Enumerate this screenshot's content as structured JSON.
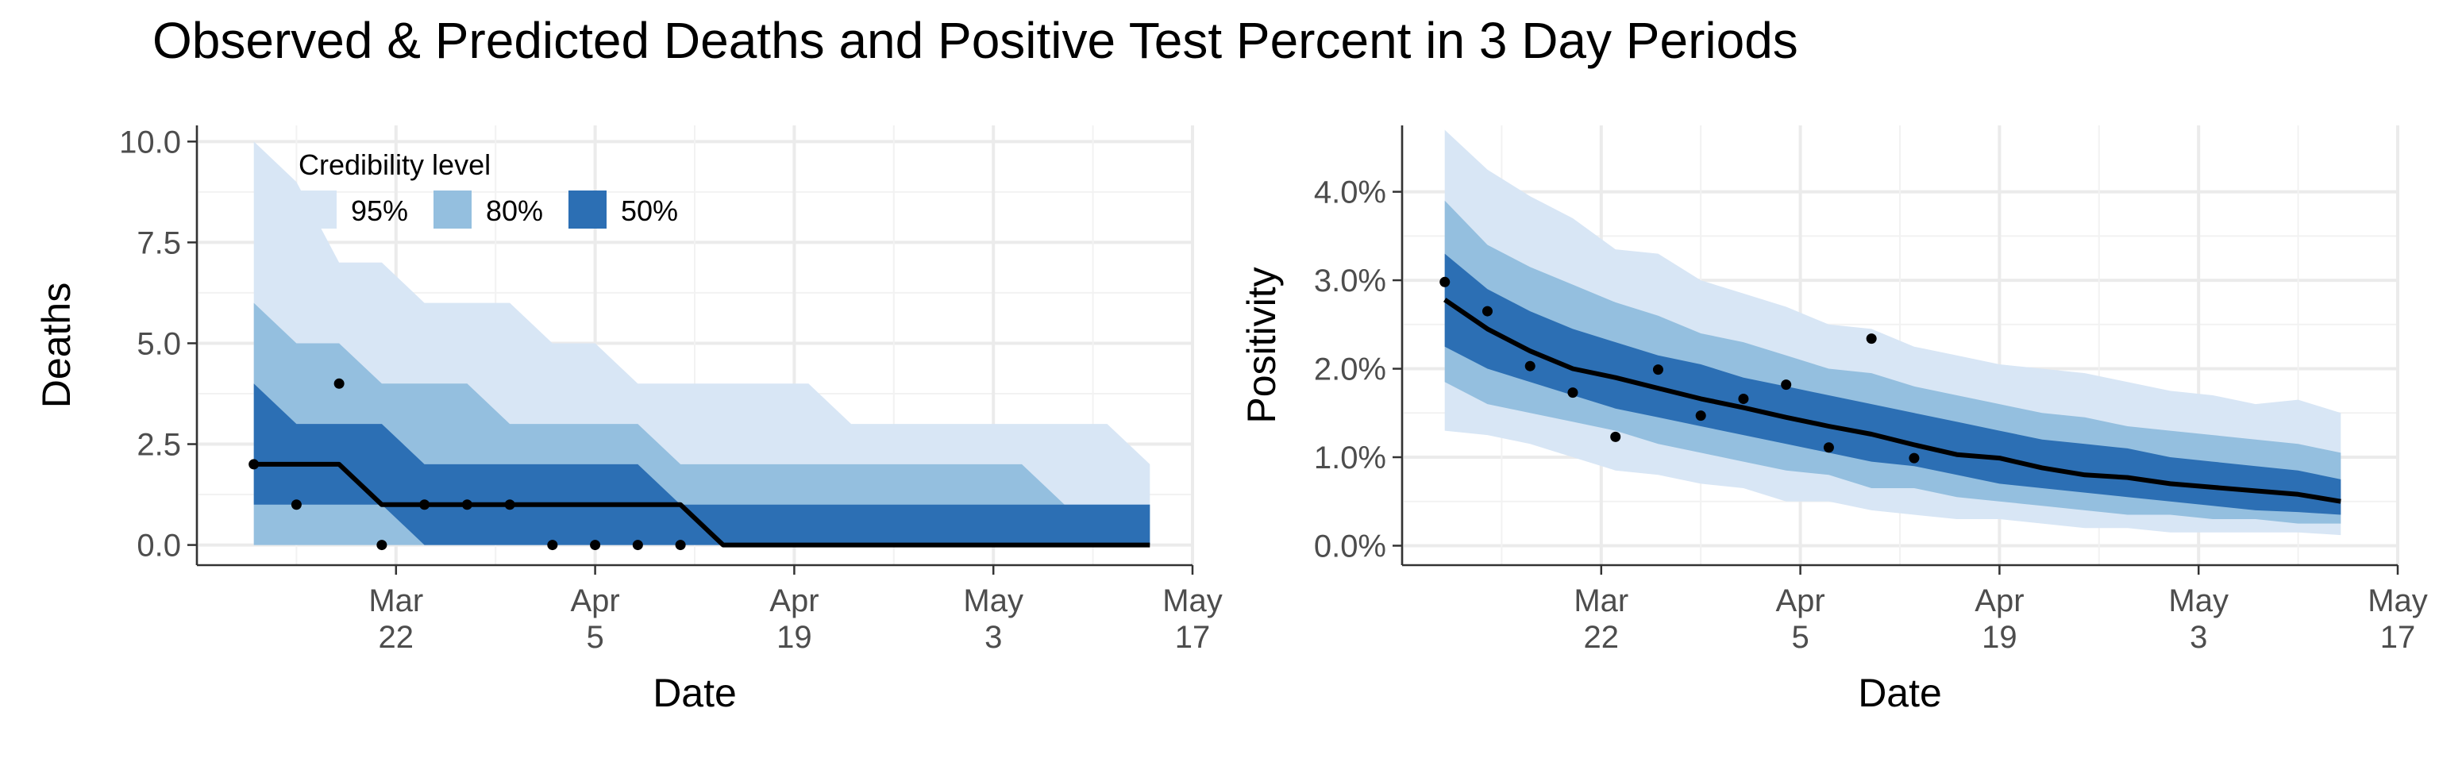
{
  "title": "Observed & Predicted Deaths and Positive Test Percent in 3 Day Periods",
  "chart_data": [
    {
      "type": "area",
      "ylabel": "Deaths",
      "xlabel": "Date",
      "xlim": [
        "2020-03-08",
        "2020-05-17"
      ],
      "ylim": [
        -0.5,
        10.4
      ],
      "x_ticks": [
        {
          "date": "2020-03-22",
          "line1": "Mar",
          "line2": "22"
        },
        {
          "date": "2020-04-05",
          "line1": "Apr",
          "line2": "5"
        },
        {
          "date": "2020-04-19",
          "line1": "Apr",
          "line2": "19"
        },
        {
          "date": "2020-05-03",
          "line1": "May",
          "line2": "3"
        },
        {
          "date": "2020-05-17",
          "line1": "May",
          "line2": "17"
        }
      ],
      "y_ticks": [
        {
          "value": 0,
          "label": "0.0"
        },
        {
          "value": 2.5,
          "label": "2.5"
        },
        {
          "value": 5,
          "label": "5.0"
        },
        {
          "value": 7.5,
          "label": "7.5"
        },
        {
          "value": 10,
          "label": "10.0"
        }
      ],
      "legend": {
        "title": "Credibility level",
        "position": "top-left",
        "items": [
          {
            "label": "95%",
            "color": "#d8e6f5"
          },
          {
            "label": "80%",
            "color": "#94bfdf"
          },
          {
            "label": "50%",
            "color": "#2c6fb4"
          }
        ]
      },
      "x": [
        "2020-03-12",
        "2020-03-15",
        "2020-03-18",
        "2020-03-21",
        "2020-03-24",
        "2020-03-27",
        "2020-03-30",
        "2020-04-02",
        "2020-04-05",
        "2020-04-08",
        "2020-04-11",
        "2020-04-14",
        "2020-04-17",
        "2020-04-20",
        "2020-04-23",
        "2020-04-26",
        "2020-04-29",
        "2020-05-02",
        "2020-05-05",
        "2020-05-08",
        "2020-05-11",
        "2020-05-14"
      ],
      "bands": {
        "95": {
          "lower": [
            0,
            0,
            0,
            0,
            0,
            0,
            0,
            0,
            0,
            0,
            0,
            0,
            0,
            0,
            0,
            0,
            0,
            0,
            0,
            0,
            0,
            0
          ],
          "upper": [
            10,
            9,
            7,
            7,
            6,
            6,
            6,
            5,
            5,
            4,
            4,
            4,
            4,
            4,
            3,
            3,
            3,
            3,
            3,
            3,
            3,
            2
          ]
        },
        "80": {
          "lower": [
            0,
            0,
            0,
            0,
            0,
            0,
            0,
            0,
            0,
            0,
            0,
            0,
            0,
            0,
            0,
            0,
            0,
            0,
            0,
            0,
            0,
            0
          ],
          "upper": [
            6,
            5,
            5,
            4,
            4,
            4,
            3,
            3,
            3,
            3,
            2,
            2,
            2,
            2,
            2,
            2,
            2,
            2,
            2,
            1,
            1,
            1
          ]
        },
        "50": {
          "lower": [
            1,
            1,
            1,
            1,
            0,
            0,
            0,
            0,
            0,
            0,
            0,
            0,
            0,
            0,
            0,
            0,
            0,
            0,
            0,
            0,
            0,
            0
          ],
          "upper": [
            4,
            3,
            3,
            3,
            2,
            2,
            2,
            2,
            2,
            2,
            1,
            1,
            1,
            1,
            1,
            1,
            1,
            1,
            1,
            1,
            1,
            1
          ]
        }
      },
      "predicted_median": [
        2,
        2,
        2,
        1,
        1,
        1,
        1,
        1,
        1,
        1,
        1,
        0,
        0,
        0,
        0,
        0,
        0,
        0,
        0,
        0,
        0,
        0
      ],
      "observed": [
        {
          "x": "2020-03-12",
          "y": 2
        },
        {
          "x": "2020-03-15",
          "y": 1
        },
        {
          "x": "2020-03-18",
          "y": 4
        },
        {
          "x": "2020-03-21",
          "y": 0
        },
        {
          "x": "2020-03-24",
          "y": 1
        },
        {
          "x": "2020-03-27",
          "y": 1
        },
        {
          "x": "2020-03-30",
          "y": 1
        },
        {
          "x": "2020-04-02",
          "y": 0
        },
        {
          "x": "2020-04-05",
          "y": 0
        },
        {
          "x": "2020-04-08",
          "y": 0
        },
        {
          "x": "2020-04-11",
          "y": 0
        }
      ],
      "grid": true
    },
    {
      "type": "area",
      "ylabel": "Positivity",
      "xlabel": "Date",
      "xlim": [
        "2020-03-08",
        "2020-05-17"
      ],
      "ylim": [
        -0.22,
        4.75
      ],
      "x_ticks": [
        {
          "date": "2020-03-22",
          "line1": "Mar",
          "line2": "22"
        },
        {
          "date": "2020-04-05",
          "line1": "Apr",
          "line2": "5"
        },
        {
          "date": "2020-04-19",
          "line1": "Apr",
          "line2": "19"
        },
        {
          "date": "2020-05-03",
          "line1": "May",
          "line2": "3"
        },
        {
          "date": "2020-05-17",
          "line1": "May",
          "line2": "17"
        }
      ],
      "y_ticks": [
        {
          "value": 0,
          "label": "0.0%"
        },
        {
          "value": 1,
          "label": "1.0%"
        },
        {
          "value": 2,
          "label": "2.0%"
        },
        {
          "value": 3,
          "label": "3.0%"
        },
        {
          "value": 4,
          "label": "4.0%"
        }
      ],
      "x": [
        "2020-03-11",
        "2020-03-14",
        "2020-03-17",
        "2020-03-20",
        "2020-03-23",
        "2020-03-26",
        "2020-03-29",
        "2020-04-01",
        "2020-04-04",
        "2020-04-07",
        "2020-04-10",
        "2020-04-13",
        "2020-04-16",
        "2020-04-19",
        "2020-04-22",
        "2020-04-25",
        "2020-04-28",
        "2020-05-01",
        "2020-05-04",
        "2020-05-07",
        "2020-05-10",
        "2020-05-13"
      ],
      "bands": {
        "95": {
          "lower": [
            1.3,
            1.25,
            1.15,
            1.0,
            0.85,
            0.8,
            0.7,
            0.65,
            0.5,
            0.5,
            0.4,
            0.35,
            0.3,
            0.3,
            0.25,
            0.2,
            0.2,
            0.15,
            0.15,
            0.15,
            0.15,
            0.12
          ],
          "upper": [
            4.7,
            4.25,
            3.95,
            3.7,
            3.35,
            3.3,
            3.0,
            2.85,
            2.7,
            2.5,
            2.45,
            2.25,
            2.15,
            2.05,
            2.0,
            1.95,
            1.85,
            1.75,
            1.7,
            1.6,
            1.65,
            1.5
          ]
        },
        "80": {
          "lower": [
            1.85,
            1.6,
            1.5,
            1.4,
            1.3,
            1.15,
            1.05,
            0.95,
            0.85,
            0.8,
            0.65,
            0.65,
            0.55,
            0.5,
            0.45,
            0.4,
            0.35,
            0.35,
            0.3,
            0.3,
            0.25,
            0.25
          ],
          "upper": [
            3.9,
            3.4,
            3.15,
            2.95,
            2.75,
            2.6,
            2.4,
            2.3,
            2.15,
            2.0,
            1.95,
            1.8,
            1.7,
            1.6,
            1.5,
            1.45,
            1.35,
            1.3,
            1.25,
            1.2,
            1.15,
            1.05
          ]
        },
        "50": {
          "lower": [
            2.25,
            2.0,
            1.85,
            1.7,
            1.55,
            1.45,
            1.35,
            1.25,
            1.15,
            1.05,
            0.95,
            0.9,
            0.8,
            0.7,
            0.65,
            0.6,
            0.55,
            0.5,
            0.45,
            0.4,
            0.38,
            0.35
          ],
          "upper": [
            3.3,
            2.9,
            2.65,
            2.45,
            2.3,
            2.15,
            2.05,
            1.9,
            1.8,
            1.7,
            1.6,
            1.5,
            1.4,
            1.3,
            1.2,
            1.15,
            1.1,
            1.0,
            0.95,
            0.9,
            0.85,
            0.75
          ]
        }
      },
      "predicted_median": [
        2.78,
        2.45,
        2.2,
        2.0,
        1.9,
        1.78,
        1.66,
        1.56,
        1.45,
        1.35,
        1.26,
        1.14,
        1.03,
        0.99,
        0.88,
        0.8,
        0.77,
        0.7,
        0.66,
        0.62,
        0.58,
        0.5
      ],
      "observed": [
        {
          "x": "2020-03-11",
          "y": 2.98
        },
        {
          "x": "2020-03-14",
          "y": 2.65
        },
        {
          "x": "2020-03-17",
          "y": 2.03
        },
        {
          "x": "2020-03-20",
          "y": 1.73
        },
        {
          "x": "2020-03-23",
          "y": 1.23
        },
        {
          "x": "2020-03-26",
          "y": 1.99
        },
        {
          "x": "2020-03-29",
          "y": 1.47
        },
        {
          "x": "2020-04-01",
          "y": 1.66
        },
        {
          "x": "2020-04-04",
          "y": 1.82
        },
        {
          "x": "2020-04-07",
          "y": 1.11
        },
        {
          "x": "2020-04-10",
          "y": 2.34
        },
        {
          "x": "2020-04-13",
          "y": 0.99
        }
      ],
      "grid": true
    }
  ]
}
